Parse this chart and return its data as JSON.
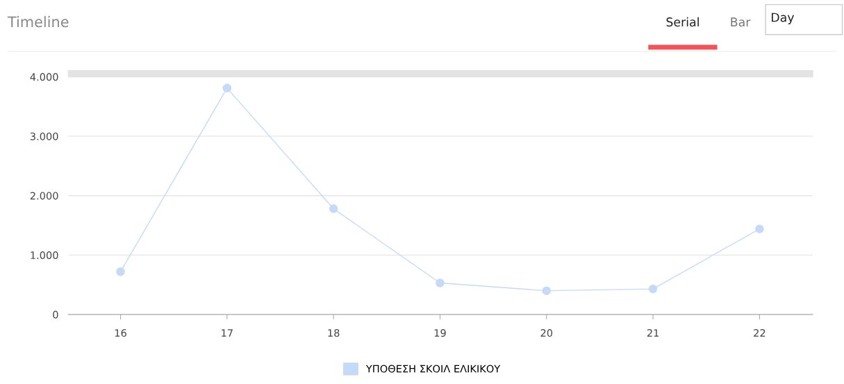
{
  "chart_data": {
    "type": "line",
    "title": "Timeline",
    "annotations": [
      "Serial",
      "Bar",
      "Day"
    ],
    "categories": [
      "16",
      "17",
      "18",
      "19",
      "20",
      "21",
      "22"
    ],
    "series": [
      {
        "name": "ΥΠΟΘΕΣΗ ΣΚΟΙΛ ΕΛΙΚΙΚΟΥ",
        "color": "#c6d9f7",
        "values": [
          720,
          3810,
          1780,
          530,
          400,
          430,
          1440
        ]
      }
    ],
    "ylim": [
      0,
      4000
    ],
    "yticks": [
      0,
      {
        "value": 1000,
        "label": "1.000"
      },
      {
        "value": 2000,
        "label": "2.000"
      },
      {
        "value": 3000,
        "label": "3.000"
      },
      {
        "value": 4000,
        "label": "4.000"
      }
    ],
    "grid": "y",
    "legend": "bottom",
    "marker": "circle",
    "line_style": "solid"
  }
}
